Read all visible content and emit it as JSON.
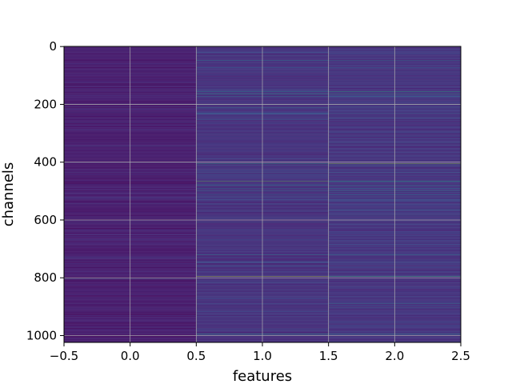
{
  "chart_data": {
    "type": "heatmap",
    "xlabel": "features",
    "ylabel": "channels",
    "xlim": [
      -0.5,
      2.5
    ],
    "ylim": [
      1023.5,
      -0.5
    ],
    "x_ticks": [
      -0.5,
      0.0,
      0.5,
      1.0,
      1.5,
      2.0,
      2.5
    ],
    "x_tick_labels": [
      "−0.5",
      "0.0",
      "0.5",
      "1.0",
      "1.5",
      "2.0",
      "2.5"
    ],
    "y_ticks": [
      0,
      200,
      400,
      600,
      800,
      1000
    ],
    "y_tick_labels": [
      "0",
      "200",
      "400",
      "600",
      "800",
      "1000"
    ],
    "grid": true,
    "colormap": "viridis",
    "columns": 3,
    "rows": 1024,
    "column_base_levels": [
      0.08,
      0.14,
      0.15
    ],
    "highlight_rows": [
      {
        "channel": 48,
        "values": [
          0.06,
          0.45,
          0.42
        ]
      },
      {
        "channel": 72,
        "values": [
          0.05,
          0.3,
          0.3
        ]
      },
      {
        "channel": 155,
        "values": [
          0.1,
          0.5,
          0.62
        ]
      },
      {
        "channel": 165,
        "values": [
          0.12,
          0.55,
          0.55
        ]
      },
      {
        "channel": 172,
        "values": [
          0.08,
          0.4,
          0.4
        ]
      },
      {
        "channel": 200,
        "values": [
          0.06,
          0.38,
          0.4
        ]
      },
      {
        "channel": 210,
        "values": [
          0.05,
          0.42,
          0.35
        ]
      },
      {
        "channel": 230,
        "values": [
          0.05,
          0.3,
          0.3
        ]
      },
      {
        "channel": 330,
        "values": [
          0.15,
          0.1,
          0.1
        ]
      },
      {
        "channel": 405,
        "values": [
          0.06,
          0.6,
          0.85
        ]
      },
      {
        "channel": 410,
        "values": [
          0.05,
          0.3,
          0.3
        ]
      },
      {
        "channel": 435,
        "values": [
          0.2,
          0.3,
          0.3
        ]
      },
      {
        "channel": 445,
        "values": [
          0.15,
          0.25,
          0.25
        ]
      },
      {
        "channel": 465,
        "values": [
          0.06,
          0.75,
          0.6
        ]
      },
      {
        "channel": 480,
        "values": [
          0.05,
          0.45,
          0.45
        ]
      },
      {
        "channel": 490,
        "values": [
          0.05,
          0.38,
          0.38
        ]
      },
      {
        "channel": 500,
        "values": [
          0.05,
          0.4,
          0.5
        ]
      },
      {
        "channel": 512,
        "values": [
          0.05,
          0.35,
          0.4
        ]
      },
      {
        "channel": 520,
        "values": [
          0.05,
          0.3,
          0.3
        ]
      },
      {
        "channel": 565,
        "values": [
          0.05,
          0.3,
          0.3
        ]
      },
      {
        "channel": 720,
        "values": [
          0.05,
          0.45,
          0.45
        ]
      },
      {
        "channel": 745,
        "values": [
          0.05,
          0.25,
          0.28
        ]
      },
      {
        "channel": 795,
        "values": [
          0.06,
          0.9,
          0.7
        ]
      },
      {
        "channel": 890,
        "values": [
          0.05,
          0.25,
          0.4
        ]
      },
      {
        "channel": 995,
        "values": [
          0.05,
          0.55,
          0.5
        ]
      }
    ]
  }
}
